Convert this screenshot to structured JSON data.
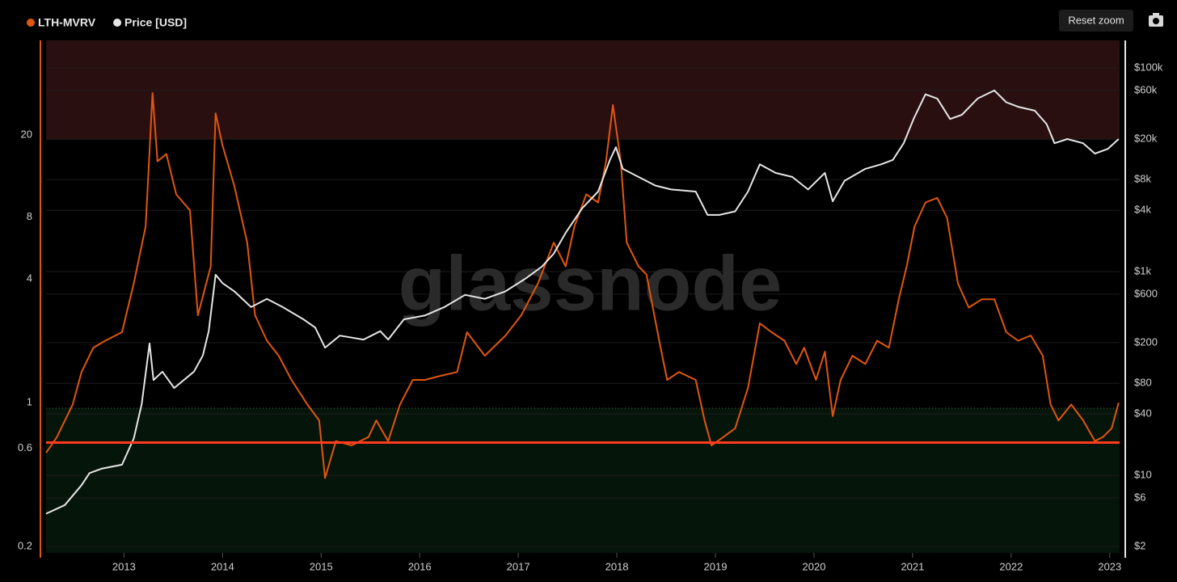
{
  "chart_data": {
    "type": "line",
    "watermark": "glassnode",
    "reset_button": "Reset zoom",
    "xlim": [
      2012.21,
      2023.1
    ],
    "xticks": [
      2013,
      2014,
      2015,
      2016,
      2017,
      2018,
      2019,
      2020,
      2021,
      2022,
      2023
    ],
    "ylim": [
      0.186,
      57.7
    ],
    "ylog": true,
    "yticks": [
      0.2,
      0.6,
      1,
      4,
      8,
      20
    ],
    "y2lim": [
      1.73,
      186000
    ],
    "y2log": true,
    "y2ticks": [
      {
        "value": 2,
        "label": "$2"
      },
      {
        "value": 6,
        "label": "$6"
      },
      {
        "value": 10,
        "label": "$10"
      },
      {
        "value": 40,
        "label": "$40"
      },
      {
        "value": 80,
        "label": "$80"
      },
      {
        "value": 200,
        "label": "$200"
      },
      {
        "value": 600,
        "label": "$600"
      },
      {
        "value": 1000,
        "label": "$1k"
      },
      {
        "value": 4000,
        "label": "$4k"
      },
      {
        "value": 8000,
        "label": "$8k"
      },
      {
        "value": 20000,
        "label": "$20k"
      },
      {
        "value": 60000,
        "label": "$60k"
      },
      {
        "value": 100000,
        "label": "$100k"
      }
    ],
    "grid": true,
    "zones": [
      {
        "from": 19,
        "to": 57.7,
        "color": "#2a0f11"
      },
      {
        "from": 0.186,
        "to": 0.94,
        "color": "#06150a"
      }
    ],
    "reference_line": {
      "value": 0.64,
      "color": "#ff3b1f"
    },
    "series": [
      {
        "name": "LTH-MVRV",
        "color": "#e0560f",
        "x": [
          2012.21,
          2012.32,
          2012.48,
          2012.57,
          2012.69,
          2012.81,
          2012.98,
          2013.1,
          2013.22,
          2013.29,
          2013.34,
          2013.43,
          2013.53,
          2013.67,
          2013.75,
          2013.88,
          2013.93,
          2014.0,
          2014.12,
          2014.25,
          2014.33,
          2014.45,
          2014.57,
          2014.7,
          2014.86,
          2014.98,
          2015.04,
          2015.15,
          2015.31,
          2015.48,
          2015.56,
          2015.68,
          2015.8,
          2015.93,
          2016.05,
          2016.21,
          2016.38,
          2016.48,
          2016.66,
          2016.87,
          2017.03,
          2017.2,
          2017.36,
          2017.48,
          2017.57,
          2017.69,
          2017.81,
          2017.89,
          2017.96,
          2018.04,
          2018.1,
          2018.22,
          2018.3,
          2018.43,
          2018.51,
          2018.63,
          2018.8,
          2018.89,
          2018.96,
          2019.08,
          2019.2,
          2019.33,
          2019.45,
          2019.57,
          2019.7,
          2019.82,
          2019.9,
          2020.02,
          2020.11,
          2020.19,
          2020.27,
          2020.39,
          2020.52,
          2020.64,
          2020.76,
          2020.86,
          2020.94,
          2021.02,
          2021.13,
          2021.25,
          2021.35,
          2021.46,
          2021.57,
          2021.7,
          2021.83,
          2021.95,
          2022.07,
          2022.2,
          2022.32,
          2022.4,
          2022.48,
          2022.61,
          2022.73,
          2022.85,
          2022.93,
          2023.02,
          2023.09
        ],
        "values": [
          0.57,
          0.68,
          0.98,
          1.41,
          1.85,
          2.0,
          2.2,
          3.8,
          7.2,
          32,
          14.9,
          16.2,
          10.3,
          8.6,
          2.66,
          4.6,
          25.5,
          17.8,
          11.3,
          6.0,
          2.66,
          2.0,
          1.69,
          1.29,
          0.98,
          0.82,
          0.43,
          0.65,
          0.62,
          0.68,
          0.82,
          0.65,
          0.98,
          1.29,
          1.29,
          1.35,
          1.41,
          2.2,
          1.69,
          2.12,
          2.66,
          3.8,
          6.0,
          4.6,
          7.2,
          10.3,
          9.4,
          14.9,
          28,
          14.9,
          6.0,
          4.6,
          4.2,
          2.0,
          1.29,
          1.41,
          1.29,
          0.82,
          0.62,
          0.68,
          0.75,
          1.18,
          2.43,
          2.2,
          2.0,
          1.54,
          1.85,
          1.29,
          1.77,
          0.86,
          1.29,
          1.69,
          1.54,
          2.0,
          1.85,
          3.18,
          4.6,
          7.2,
          9.4,
          9.9,
          7.9,
          3.8,
          2.9,
          3.18,
          3.18,
          2.2,
          2.0,
          2.12,
          1.69,
          0.98,
          0.82,
          0.98,
          0.82,
          0.65,
          0.68,
          0.75,
          1.0
        ]
      },
      {
        "name": "Price [USD]",
        "color": "#e6e6e6",
        "axis": "y2",
        "x": [
          2012.21,
          2012.4,
          2012.57,
          2012.65,
          2012.77,
          2012.98,
          2013.1,
          2013.18,
          2013.26,
          2013.3,
          2013.39,
          2013.51,
          2013.71,
          2013.8,
          2013.86,
          2013.93,
          2014.0,
          2014.12,
          2014.29,
          2014.45,
          2014.61,
          2014.82,
          2014.94,
          2015.04,
          2015.19,
          2015.43,
          2015.6,
          2015.68,
          2015.84,
          2016.05,
          2016.25,
          2016.46,
          2016.66,
          2016.87,
          2017.07,
          2017.24,
          2017.36,
          2017.48,
          2017.65,
          2017.81,
          2017.93,
          2017.99,
          2018.06,
          2018.22,
          2018.39,
          2018.55,
          2018.8,
          2018.92,
          2019.04,
          2019.2,
          2019.33,
          2019.45,
          2019.61,
          2019.78,
          2019.94,
          2020.11,
          2020.19,
          2020.31,
          2020.52,
          2020.68,
          2020.8,
          2020.91,
          2021.01,
          2021.13,
          2021.25,
          2021.38,
          2021.5,
          2021.66,
          2021.83,
          2021.95,
          2022.07,
          2022.24,
          2022.36,
          2022.44,
          2022.57,
          2022.73,
          2022.85,
          2022.98,
          2023.09
        ],
        "values": [
          4.2,
          5.1,
          8,
          10.5,
          11.6,
          12.7,
          23,
          50,
          197,
          86,
          104,
          72,
          104,
          150,
          260,
          930,
          770,
          640,
          448,
          540,
          448,
          340,
          282,
          179,
          235,
          215,
          260,
          215,
          340,
          370,
          448,
          590,
          540,
          640,
          850,
          1120,
          1500,
          2400,
          4200,
          6100,
          12500,
          16600,
          10200,
          8500,
          7000,
          6400,
          6100,
          3600,
          3600,
          3900,
          6100,
          11300,
          9300,
          8500,
          6400,
          9300,
          4900,
          7800,
          10200,
          11300,
          12500,
          18200,
          31500,
          55000,
          50000,
          31500,
          34600,
          50000,
          60000,
          46000,
          41500,
          38000,
          28000,
          18200,
          20000,
          18200,
          14400,
          16000,
          20000
        ]
      }
    ]
  }
}
